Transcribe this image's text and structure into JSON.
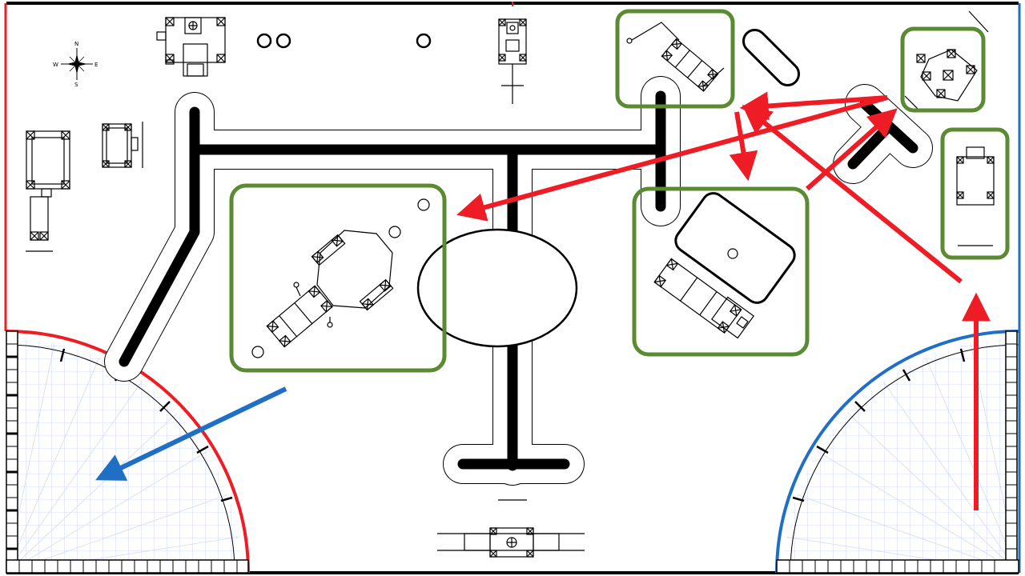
{
  "compass": {
    "north": "N",
    "south": "S",
    "east": "E",
    "west": "W"
  },
  "colors": {
    "red": "#ee1c25",
    "blue": "#1f6fc5",
    "green": "#5a8a32",
    "black": "#000000",
    "grid": "#c6cff2"
  },
  "highlighted_models": [
    "line-follower-model",
    "top-right-model-1",
    "top-right-model-2",
    "right-edge-model",
    "central-model",
    "right-model-rectangle"
  ]
}
